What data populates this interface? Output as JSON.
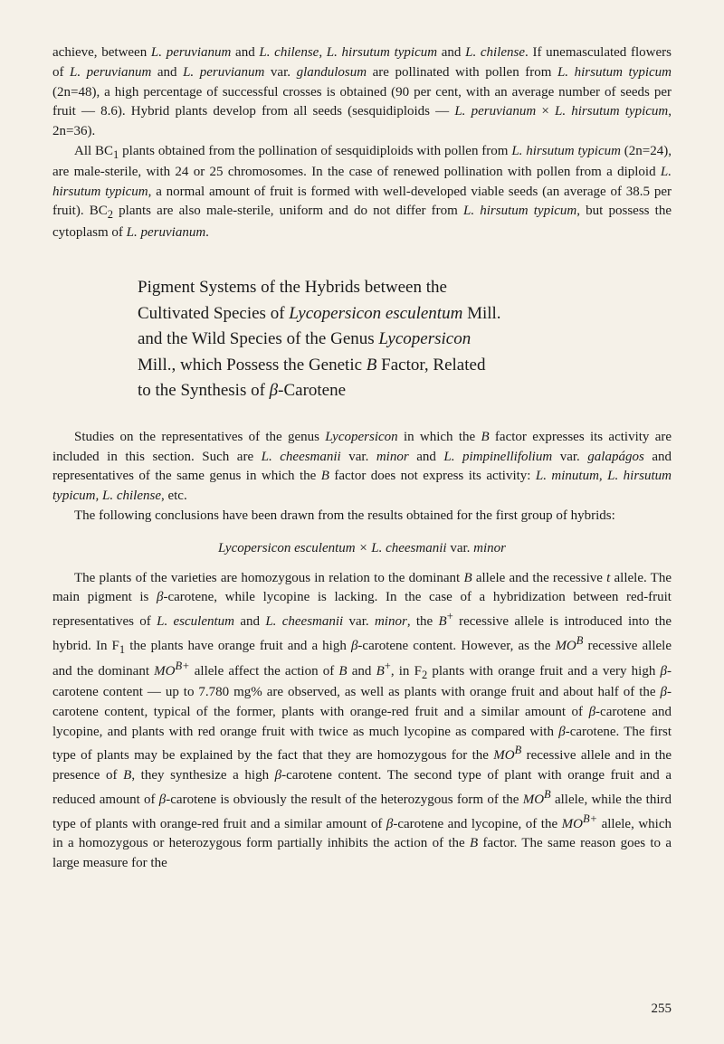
{
  "paragraphs": {
    "p1": "achieve, between L. peruvianum and L. chilense, L. hirsutum typicum and L. chilense. If unemasculated flowers of L. peruvianum and L. peruvianum var. glandulosum are pollinated with pollen from L. hirsutum typicum (2n=48), a high percentage of successful crosses is obtained (90 per cent, with an average number of seeds per fruit — 8.6). Hybrid plants develop from all seeds (sesquidiploids — L. peruvianum × L. hirsutum typicum, 2n=36).",
    "p2": "All BC₁ plants obtained from the pollination of sesquidiploids with pollen from L. hirsutum typicum (2n=24), are male-sterile, with 24 or 25 chromosomes. In the case of renewed pollination with pollen from a diploid L. hirsutum typicum, a normal amount of fruit is formed with well-developed viable seeds (an average of 38.5 per fruit). BC₂ plants are also male-sterile, uniform and do not differ from L. hirsutum typicum, but possess the cytoplasm of L. peruvianum.",
    "heading": "Pigment Systems of the Hybrids between the Cultivated Species of Lycopersicon esculentum Mill. and the Wild Species of the Genus Lycopersicon Mill., which Possess the Genetic B Factor, Related to the Synthesis of β-Carotene",
    "p3": "Studies on the representatives of the genus Lycopersicon in which the B factor expresses its activity are included in this section. Such are L. cheesmanii var. minor and L. pimpinellifolium var. galapágos and representatives of the same genus in which the B factor does not express its activity: L. minutum, L. hirsutum typicum, L. chilense, etc.",
    "p4": "The following conclusions have been drawn from the results obtained for the first group of hybrids:",
    "subheading": "Lycopersicon esculentum × L. cheesmanii var. minor",
    "p5": "The plants of the varieties are homozygous in relation to the dominant B allele and the recessive t allele. The main pigment is β-carotene, while lycopine is lacking. In the case of a hybridization between red-fruit representatives of L. esculentum and L. cheesmanii var. minor, the B⁺ recessive allele is introduced into the hybrid. In F₁ the plants have orange fruit and a high β-carotene content. However, as the MOᴮ recessive allele and the dominant MOᴮ⁺ allele affect the action of B and B⁺, in F₂ plants with orange fruit and a very high β-carotene content — up to 7.780 mg% are observed, as well as plants with orange fruit and about half of the β-carotene content, typical of the former, plants with orange-red fruit and a similar amount of β-carotene and lycopine, and plants with red orange fruit with twice as much lycopine as compared with β-carotene. The first type of plants may be explained by the fact that they are homozygous for the MOᴮ recessive allele and in the presence of B, they synthesize a high β-carotene content. The second type of plant with orange fruit and a reduced amount of β-carotene is obviously the result of the heterozygous form of the MOᴮ allele, while the third type of plants with orange-red fruit and a similar amount of β-carotene and lycopine, of the MOᴮ⁺ allele, which in a homozygous or heterozygous form partially inhibits the action of the B factor. The same reason goes to a large measure for the"
  },
  "pageNumber": "255"
}
